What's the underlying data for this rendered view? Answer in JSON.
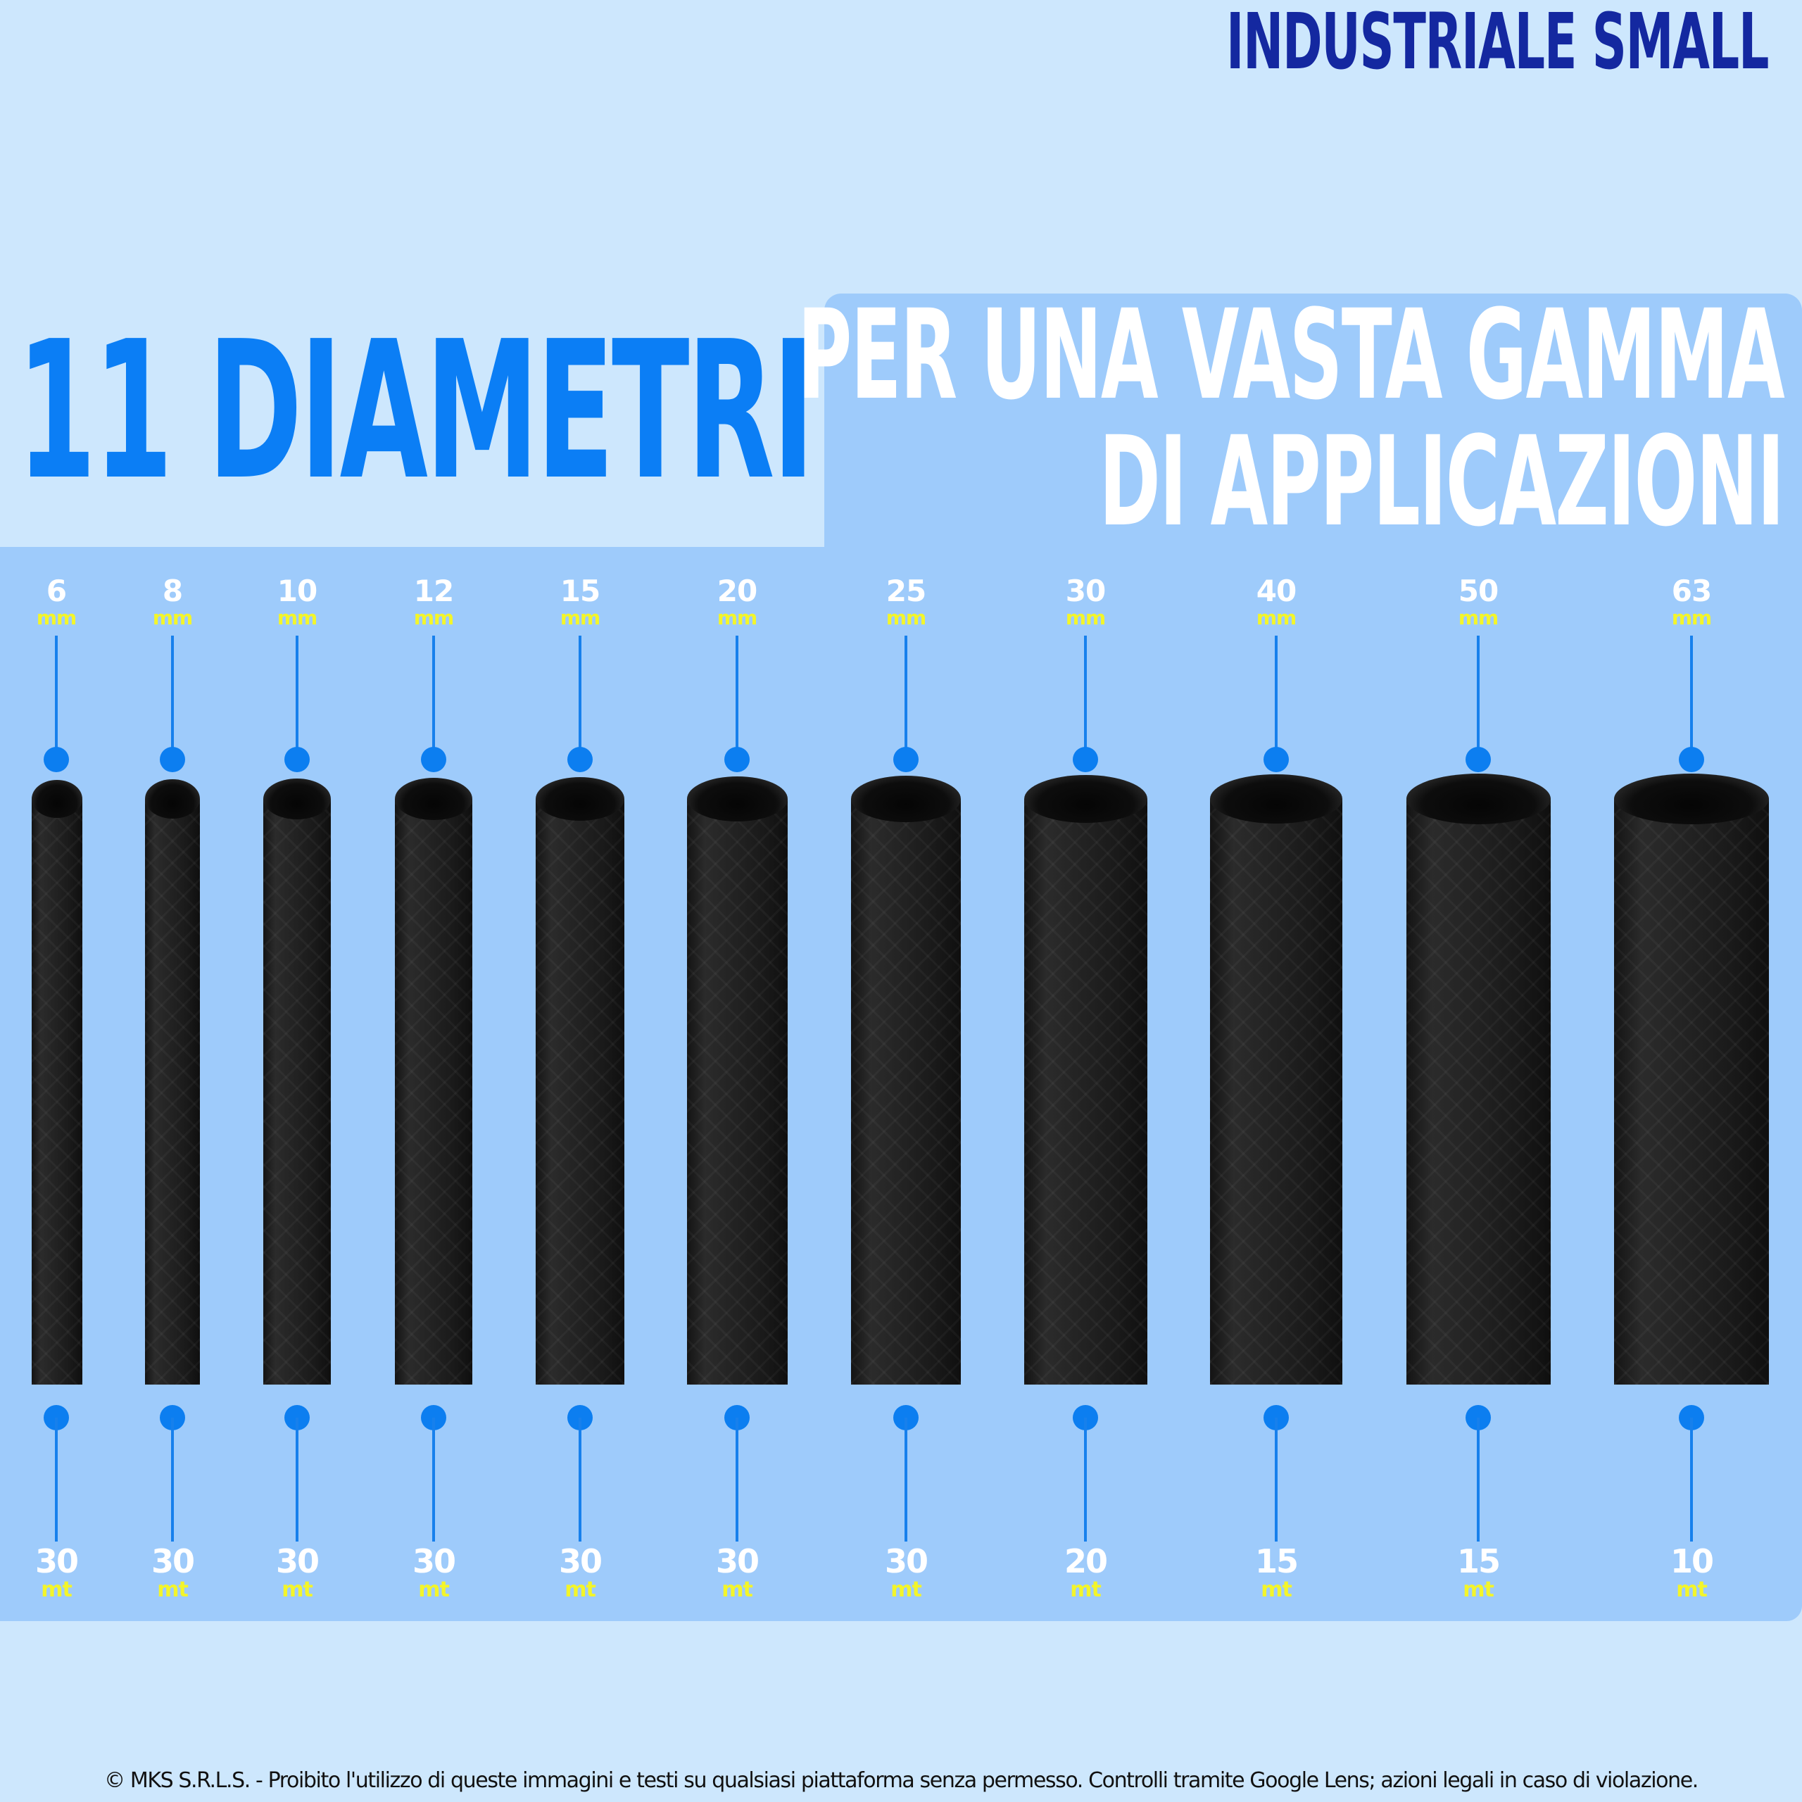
{
  "brand": {
    "title": "INDUSTRIALE SMALL"
  },
  "headline": {
    "main": "11 DIAMETRI",
    "sub_line1": "PER UNA VASTA GAMMA",
    "sub_line2": "DI APPLICAZIONI"
  },
  "hoses": [
    {
      "diameter": "6",
      "diameter_unit": "mm",
      "length": "30",
      "length_unit": "mt"
    },
    {
      "diameter": "8",
      "diameter_unit": "mm",
      "length": "30",
      "length_unit": "mt"
    },
    {
      "diameter": "10",
      "diameter_unit": "mm",
      "length": "30",
      "length_unit": "mt"
    },
    {
      "diameter": "12",
      "diameter_unit": "mm",
      "length": "30",
      "length_unit": "mt"
    },
    {
      "diameter": "15",
      "diameter_unit": "mm",
      "length": "30",
      "length_unit": "mt"
    },
    {
      "diameter": "20",
      "diameter_unit": "mm",
      "length": "30",
      "length_unit": "mt"
    },
    {
      "diameter": "25",
      "diameter_unit": "mm",
      "length": "30",
      "length_unit": "mt"
    },
    {
      "diameter": "30",
      "diameter_unit": "mm",
      "length": "20",
      "length_unit": "mt"
    },
    {
      "diameter": "40",
      "diameter_unit": "mm",
      "length": "15",
      "length_unit": "mt"
    },
    {
      "diameter": "50",
      "diameter_unit": "mm",
      "length": "15",
      "length_unit": "mt"
    },
    {
      "diameter": "63",
      "diameter_unit": "mm",
      "length": "10",
      "length_unit": "mt"
    }
  ],
  "footer": {
    "copyright": "© MKS S.R.L.S. - Proibito l'utilizzo di queste immagini e testi su qualsiasi piattaforma senza permesso. Controlli tramite Google Lens; azioni legali in caso di violazione."
  },
  "colors": {
    "background": "#cde7fd",
    "panel": "#9ecbfb",
    "headline_blue": "#0b7ef5",
    "brand_navy": "#1428a0",
    "unit_yellow": "#f3f52a",
    "hose_black": "#1e1e1e"
  }
}
